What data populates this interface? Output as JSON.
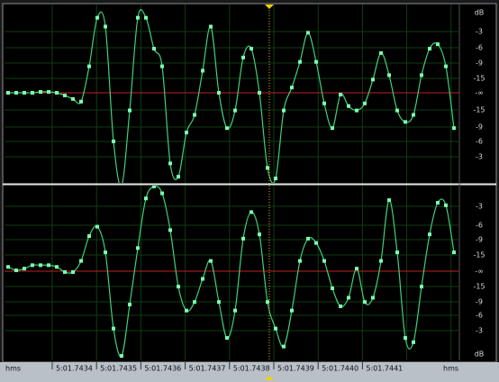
{
  "ruler": {
    "labels": [
      "hms",
      "5:01.7434",
      "5:01.7435",
      "5:01.7436",
      "5:01.7437",
      "5:01.7438",
      "5:01.7439",
      "5:01.7440",
      "5:01.7441",
      "hms"
    ]
  },
  "channels": [
    {
      "scale": [
        "dB",
        "-3",
        "-6",
        "-9",
        "-15",
        "-∞",
        "-15",
        "-9",
        "-6",
        "-3"
      ],
      "samples": [
        0,
        0,
        0,
        0,
        0.01,
        0.01,
        0,
        -0.03,
        -0.07,
        -0.1,
        0.3,
        0.85,
        0.75,
        -0.55,
        -1.05,
        -0.2,
        0.85,
        0.85,
        0.5,
        0.3,
        -0.8,
        -0.95,
        -0.45,
        -0.25,
        0.25,
        0.75,
        0,
        -0.4,
        -0.2,
        0.4,
        0.5,
        0,
        -0.85,
        -0.97,
        -0.2,
        0.06,
        0.35,
        0.68,
        0.35,
        -0.12,
        -0.4,
        -0.02,
        -0.15,
        -0.2,
        -0.12,
        0.15,
        0.45,
        0.2,
        -0.2,
        -0.33,
        -0.25,
        0.2,
        0.5,
        0.55,
        0.3,
        -0.4
      ]
    },
    {
      "scale": [
        "-3",
        "-6",
        "-9",
        "-15",
        "-∞",
        "-15",
        "-9",
        "-6",
        "-3",
        "dB"
      ],
      "samples": [
        0.05,
        0.01,
        0.03,
        0.07,
        0.07,
        0.07,
        0.05,
        -0.01,
        -0.01,
        0.12,
        0.41,
        0.52,
        0.22,
        -0.67,
        -0.99,
        -0.39,
        0.27,
        0.85,
        0.99,
        0.91,
        0.48,
        -0.18,
        -0.46,
        -0.36,
        -0.09,
        0.12,
        -0.36,
        -0.78,
        -0.46,
        0.38,
        0.69,
        0.43,
        -0.36,
        -0.67,
        -0.88,
        -0.46,
        0.12,
        0.38,
        0.33,
        0.12,
        -0.2,
        -0.41,
        -0.31,
        0.03,
        -0.36,
        -0.31,
        0.12,
        0.83,
        0.22,
        -0.78,
        -0.83,
        -0.18,
        0.43,
        0.8,
        0.77,
        0.22
      ]
    }
  ]
}
